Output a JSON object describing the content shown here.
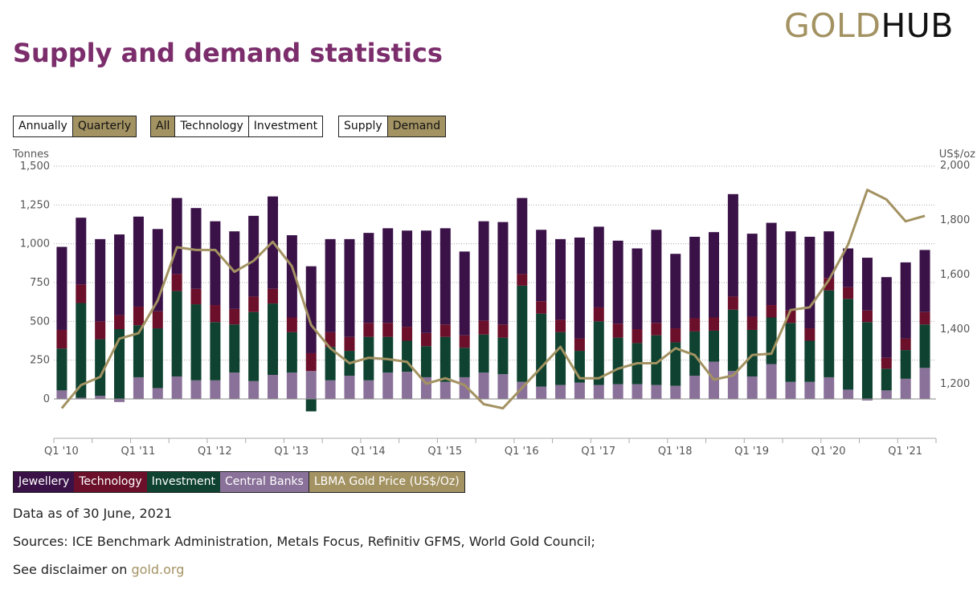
{
  "logo": {
    "gold": "GOLD",
    "hub": "HUB"
  },
  "title": "Supply and demand statistics",
  "period_buttons": [
    {
      "label": "Annually",
      "active": false
    },
    {
      "label": "Quarterly",
      "active": true
    }
  ],
  "sector_buttons": [
    {
      "label": "All",
      "active": true
    },
    {
      "label": "Technology",
      "active": false
    },
    {
      "label": "Investment",
      "active": false
    }
  ],
  "mode_buttons": [
    {
      "label": "Supply",
      "active": false
    },
    {
      "label": "Demand",
      "active": true
    }
  ],
  "colors": {
    "jewellery": "#3a1248",
    "technology": "#6b0f2a",
    "investment": "#0f4230",
    "central_banks": "#8a7199",
    "gold_price": "#a39262",
    "title": "#7b2d6c"
  },
  "legend": [
    {
      "label": "Jewellery",
      "color": "#3a1248"
    },
    {
      "label": "Technology",
      "color": "#6b0f2a"
    },
    {
      "label": "Investment",
      "color": "#0f4230"
    },
    {
      "label": "Central Banks",
      "color": "#8a7199"
    },
    {
      "label": "LBMA Gold Price (US$/Oz)",
      "color": "#a39262"
    }
  ],
  "chart_data": {
    "type": "bar",
    "stacked": true,
    "ylabel": "Tonnes",
    "y2label": "US$/oz",
    "ylim": [
      0,
      1500
    ],
    "yticks": [
      "0",
      "250",
      "500",
      "750",
      "1,000",
      "1,250",
      "1,500"
    ],
    "y2lim": [
      1200,
      2000
    ],
    "y2ticks": [
      "1,200",
      "1,400",
      "1,600",
      "1,800",
      "2,000"
    ],
    "grid": true,
    "xtick_labels": [
      "Q1 '10",
      "Q1 '11",
      "Q1 '12",
      "Q1 '13",
      "Q1 '14",
      "Q1 '15",
      "Q1 '16",
      "Q1 '17",
      "Q1 '18",
      "Q1 '19",
      "Q1 '20",
      "Q1 '21"
    ],
    "categories": [
      "Q1 '10",
      "Q2 '10",
      "Q3 '10",
      "Q4 '10",
      "Q1 '11",
      "Q2 '11",
      "Q3 '11",
      "Q4 '11",
      "Q1 '12",
      "Q2 '12",
      "Q3 '12",
      "Q4 '12",
      "Q1 '13",
      "Q2 '13",
      "Q3 '13",
      "Q4 '13",
      "Q1 '14",
      "Q2 '14",
      "Q3 '14",
      "Q4 '14",
      "Q1 '15",
      "Q2 '15",
      "Q3 '15",
      "Q4 '15",
      "Q1 '16",
      "Q2 '16",
      "Q3 '16",
      "Q4 '16",
      "Q1 '17",
      "Q2 '17",
      "Q3 '17",
      "Q4 '17",
      "Q1 '18",
      "Q2 '18",
      "Q3 '18",
      "Q4 '18",
      "Q1 '19",
      "Q2 '19",
      "Q3 '19",
      "Q4 '19",
      "Q1 '20",
      "Q2 '20",
      "Q3 '20",
      "Q4 '20",
      "Q1 '21",
      "Q2 '21"
    ],
    "series": [
      {
        "name": "Central Banks",
        "values": [
          55,
          8,
          20,
          -20,
          140,
          70,
          145,
          120,
          120,
          170,
          115,
          155,
          170,
          180,
          120,
          150,
          120,
          170,
          175,
          140,
          110,
          140,
          170,
          160,
          110,
          80,
          90,
          105,
          90,
          95,
          95,
          90,
          85,
          150,
          240,
          180,
          145,
          225,
          110,
          110,
          140,
          60,
          -10,
          55,
          130,
          200
        ]
      },
      {
        "name": "Investment",
        "values": [
          270,
          610,
          365,
          450,
          335,
          385,
          550,
          490,
          375,
          310,
          445,
          460,
          260,
          -80,
          215,
          160,
          280,
          230,
          200,
          200,
          290,
          190,
          245,
          235,
          620,
          470,
          340,
          205,
          410,
          300,
          265,
          320,
          280,
          285,
          200,
          395,
          300,
          300,
          380,
          265,
          560,
          585,
          495,
          140,
          185,
          280
        ]
      },
      {
        "name": "Technology",
        "values": [
          120,
          120,
          115,
          90,
          120,
          110,
          110,
          100,
          110,
          100,
          100,
          95,
          95,
          115,
          95,
          90,
          90,
          90,
          90,
          85,
          80,
          80,
          90,
          85,
          75,
          80,
          80,
          80,
          90,
          90,
          90,
          80,
          90,
          85,
          85,
          85,
          85,
          80,
          80,
          80,
          80,
          75,
          75,
          70,
          75,
          80
        ]
      },
      {
        "name": "Jewellery",
        "values": [
          535,
          430,
          530,
          520,
          580,
          530,
          490,
          520,
          540,
          500,
          520,
          595,
          530,
          560,
          600,
          630,
          580,
          610,
          620,
          660,
          620,
          540,
          640,
          660,
          490,
          460,
          520,
          650,
          520,
          535,
          520,
          600,
          480,
          525,
          550,
          660,
          535,
          530,
          510,
          590,
          300,
          250,
          340,
          520,
          490,
          400
        ]
      }
    ],
    "line": {
      "name": "LBMA Gold Price (US$/Oz)",
      "values": [
        1110,
        1195,
        1225,
        1365,
        1385,
        1505,
        1700,
        1690,
        1690,
        1610,
        1650,
        1720,
        1630,
        1415,
        1330,
        1275,
        1295,
        1290,
        1280,
        1200,
        1220,
        1195,
        1125,
        1110,
        1185,
        1260,
        1335,
        1220,
        1220,
        1255,
        1275,
        1275,
        1330,
        1305,
        1215,
        1230,
        1305,
        1310,
        1470,
        1480,
        1580,
        1710,
        1910,
        1875,
        1795,
        1815
      ]
    }
  },
  "info": {
    "date": "Data as of 30 June, 2021",
    "sources": "Sources: ICE Benchmark Administration, Metals Focus, Refinitiv GFMS, World Gold Council;",
    "disclaimer_prefix": "See disclaimer on ",
    "disclaimer_link": "gold.org"
  }
}
